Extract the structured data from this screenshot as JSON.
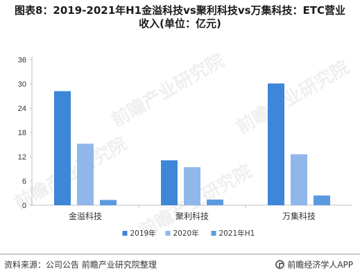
{
  "title_lines": [
    "图表8：2019-2021年H1金溢科技vs聚利科技vs万集科技：ETC营业",
    "收入(单位：亿元)"
  ],
  "source": "资料来源：公司公告 前瞻产业研究院整理",
  "brand": "前瞻经济学人APP",
  "watermark": "前瞻产业研究院",
  "colors": {
    "s2019": "#3d86d8",
    "s2020": "#8fb7ea",
    "s2021": "#5b9ae0",
    "axis": "#bfbfbf",
    "text": "#333333"
  },
  "chart_data": {
    "type": "bar",
    "categories": [
      "金溢科技",
      "聚利科技",
      "万集科技"
    ],
    "series": [
      {
        "name": "2019年",
        "values": [
          28.2,
          11.1,
          30.1
        ]
      },
      {
        "name": "2020年",
        "values": [
          15.2,
          9.4,
          12.6
        ]
      },
      {
        "name": "2021年H1",
        "values": [
          1.3,
          1.4,
          2.4
        ]
      }
    ],
    "yticks": [
      0,
      6,
      12,
      18,
      24,
      30,
      36
    ],
    "ylim": [
      0,
      36
    ],
    "legend_position": "bottom",
    "grid": false
  }
}
